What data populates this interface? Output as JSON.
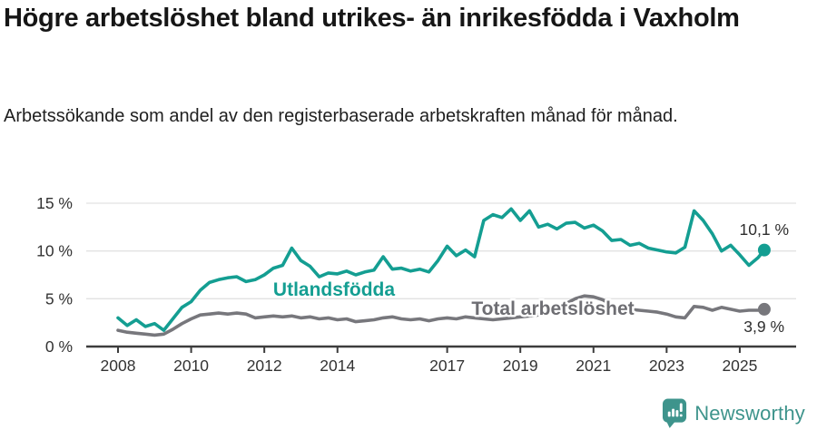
{
  "header": {
    "title": "Högre arbetslöshet bland utrikes- än inrikesfödda i Vaxholm",
    "subtitle": "Arbetssökande som andel av den registerbaserade arbetskraften månad för månad."
  },
  "chart_data": {
    "type": "line",
    "unit": "%",
    "x": [
      2008,
      2008.25,
      2008.5,
      2008.75,
      2009,
      2009.25,
      2009.5,
      2009.75,
      2010,
      2010.25,
      2010.5,
      2010.75,
      2011,
      2011.25,
      2011.5,
      2011.75,
      2012,
      2012.25,
      2012.5,
      2012.75,
      2013,
      2013.25,
      2013.5,
      2013.75,
      2014,
      2014.25,
      2014.5,
      2014.75,
      2015,
      2015.25,
      2015.5,
      2015.75,
      2016,
      2016.25,
      2016.5,
      2016.75,
      2017,
      2017.25,
      2017.5,
      2017.75,
      2018,
      2018.25,
      2018.5,
      2018.75,
      2019,
      2019.25,
      2019.5,
      2019.75,
      2020,
      2020.25,
      2020.5,
      2020.75,
      2021,
      2021.25,
      2021.5,
      2021.75,
      2022,
      2022.25,
      2022.5,
      2022.75,
      2023,
      2023.25,
      2023.5,
      2023.75,
      2024,
      2024.25,
      2024.5,
      2024.75,
      2025,
      2025.25,
      2025.5,
      2025.67
    ],
    "series": [
      {
        "name": "Utlandsfödda",
        "color": "#149e92",
        "label_color": "#149e92",
        "end_label": "10,1 %",
        "values": [
          3.0,
          2.2,
          2.8,
          2.1,
          2.4,
          1.7,
          2.9,
          4.1,
          4.7,
          5.9,
          6.7,
          7.0,
          7.2,
          7.3,
          6.8,
          7.0,
          7.5,
          8.2,
          8.5,
          10.3,
          9.0,
          8.4,
          7.3,
          7.7,
          7.6,
          7.9,
          7.5,
          7.8,
          8.0,
          9.4,
          8.1,
          8.2,
          7.9,
          8.1,
          7.8,
          9.0,
          10.5,
          9.5,
          10.1,
          9.4,
          13.2,
          13.8,
          13.5,
          14.4,
          13.2,
          14.2,
          12.5,
          12.8,
          12.3,
          12.9,
          13.0,
          12.4,
          12.7,
          12.1,
          11.1,
          11.2,
          10.6,
          10.8,
          10.3,
          10.1,
          9.9,
          9.8,
          10.4,
          14.2,
          13.2,
          11.8,
          10.0,
          10.6,
          9.6,
          8.5,
          9.3,
          10.1
        ]
      },
      {
        "name": "Total arbetslöshet",
        "color": "#77777c",
        "label_color": "#6e6e73",
        "end_label": "3,9 %",
        "values": [
          1.7,
          1.5,
          1.4,
          1.3,
          1.2,
          1.3,
          1.8,
          2.4,
          2.9,
          3.3,
          3.4,
          3.5,
          3.4,
          3.5,
          3.4,
          3.0,
          3.1,
          3.2,
          3.1,
          3.2,
          3.0,
          3.1,
          2.9,
          3.0,
          2.8,
          2.9,
          2.6,
          2.7,
          2.8,
          3.0,
          3.1,
          2.9,
          2.8,
          2.9,
          2.7,
          2.9,
          3.0,
          2.9,
          3.1,
          3.0,
          2.9,
          2.8,
          2.9,
          3.0,
          3.1,
          3.2,
          3.3,
          3.5,
          3.7,
          4.5,
          5.0,
          5.3,
          5.2,
          4.9,
          4.4,
          4.1,
          3.9,
          3.8,
          3.7,
          3.6,
          3.4,
          3.1,
          3.0,
          4.2,
          4.1,
          3.8,
          4.1,
          3.9,
          3.7,
          3.8,
          3.8,
          3.9
        ]
      }
    ],
    "ylim": [
      0,
      16.5
    ],
    "yticks": [
      0,
      5,
      10,
      15
    ],
    "ytick_labels": [
      "0 %",
      "5 %",
      "10 %",
      "15 %"
    ],
    "xticks": [
      2008,
      2010,
      2012,
      2014,
      2017,
      2019,
      2021,
      2023,
      2025
    ],
    "xtick_labels": [
      "2008",
      "2010",
      "2012",
      "2014",
      "2017",
      "2019",
      "2021",
      "2023",
      "2025"
    ],
    "grid": "horizontal",
    "legend": "inline-labels"
  },
  "footer": {
    "brand": "Newsworthy",
    "logo_icon": "bar-chart-speech-bubble-icon",
    "brand_color": "#3e948c"
  }
}
